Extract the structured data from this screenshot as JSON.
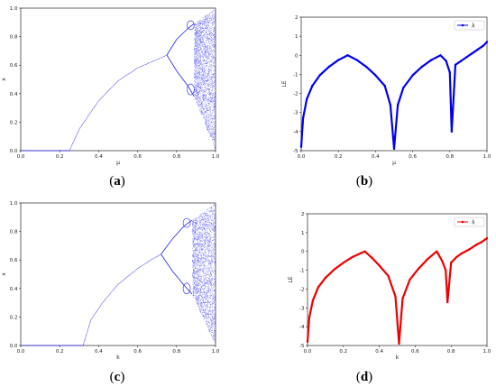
{
  "chart_data": [
    {
      "id": "a",
      "type": "scatter",
      "caption": "a",
      "xlabel": "μ",
      "ylabel": "x",
      "xlim": [
        0.0,
        1.0
      ],
      "ylim": [
        0.0,
        1.0
      ],
      "xticks": [
        "0.0",
        "0.2",
        "0.4",
        "0.6",
        "0.8",
        "1.0"
      ],
      "yticks": [
        "0.0",
        "0.2",
        "0.4",
        "0.6",
        "0.8",
        "1.0"
      ],
      "color": "#2222ee",
      "description_points": {
        "fixed_zero_until": 0.25,
        "period_doubling_at": 0.75,
        "chaos_onset": 0.89,
        "curve": [
          [
            0.25,
            0.0
          ],
          [
            0.3,
            0.15
          ],
          [
            0.4,
            0.35
          ],
          [
            0.5,
            0.49
          ],
          [
            0.6,
            0.58
          ],
          [
            0.7,
            0.64
          ],
          [
            0.75,
            0.67
          ]
        ],
        "branch_upper": [
          [
            0.75,
            0.67
          ],
          [
            0.8,
            0.78
          ],
          [
            0.86,
            0.86
          ],
          [
            0.89,
            0.89
          ]
        ],
        "branch_lower": [
          [
            0.75,
            0.67
          ],
          [
            0.8,
            0.56
          ],
          [
            0.86,
            0.45
          ],
          [
            0.89,
            0.38
          ]
        ]
      }
    },
    {
      "id": "b",
      "type": "line",
      "caption": "b",
      "xlabel": "μ",
      "ylabel": "LE",
      "xlim": [
        0.0,
        1.0
      ],
      "ylim": [
        -5,
        2
      ],
      "xticks": [
        "0.0",
        "0.2",
        "0.4",
        "0.6",
        "0.8",
        "1.0"
      ],
      "yticks": [
        "2",
        "1",
        "0",
        "-1",
        "-2",
        "-3",
        "-4",
        "-5"
      ],
      "legend": "λ",
      "color": "#0000ee",
      "series": [
        {
          "x": [
            0.0,
            0.01,
            0.03,
            0.06,
            0.1,
            0.15,
            0.2,
            0.25,
            0.3,
            0.35,
            0.4,
            0.45,
            0.48,
            0.5,
            0.52,
            0.55,
            0.6,
            0.65,
            0.7,
            0.75,
            0.78,
            0.8,
            0.81,
            0.83,
            0.86,
            0.89,
            0.92,
            0.95,
            0.98,
            1.0
          ],
          "y": [
            -4.8,
            -3.3,
            -2.3,
            -1.6,
            -1.05,
            -0.6,
            -0.25,
            0.0,
            -0.25,
            -0.6,
            -1.05,
            -1.6,
            -2.6,
            -4.9,
            -2.6,
            -1.7,
            -1.05,
            -0.6,
            -0.25,
            0.0,
            -0.3,
            -0.9,
            -4.0,
            -0.5,
            -0.3,
            -0.1,
            0.1,
            0.3,
            0.5,
            0.7
          ]
        }
      ]
    },
    {
      "id": "c",
      "type": "scatter",
      "caption": "c",
      "xlabel": "k",
      "ylabel": "x",
      "xlim": [
        0.0,
        1.0
      ],
      "ylim": [
        0.0,
        1.0
      ],
      "xticks": [
        "0.0",
        "0.2",
        "0.4",
        "0.6",
        "0.8",
        "1.0"
      ],
      "yticks": [
        "0.0",
        "0.2",
        "0.4",
        "0.6",
        "0.8",
        "1.0"
      ],
      "color": "#2222ee",
      "description_points": {
        "fixed_zero_until": 0.32,
        "period_doubling_at": 0.72,
        "chaos_onset": 0.88,
        "curve": [
          [
            0.32,
            0.0
          ],
          [
            0.36,
            0.18
          ],
          [
            0.42,
            0.3
          ],
          [
            0.5,
            0.43
          ],
          [
            0.6,
            0.54
          ],
          [
            0.68,
            0.61
          ],
          [
            0.72,
            0.64
          ]
        ],
        "branch_upper": [
          [
            0.72,
            0.64
          ],
          [
            0.78,
            0.75
          ],
          [
            0.84,
            0.84
          ],
          [
            0.88,
            0.88
          ]
        ],
        "branch_lower": [
          [
            0.72,
            0.64
          ],
          [
            0.78,
            0.52
          ],
          [
            0.84,
            0.42
          ],
          [
            0.88,
            0.36
          ]
        ]
      }
    },
    {
      "id": "d",
      "type": "line",
      "caption": "d",
      "xlabel": "k",
      "ylabel": "LE",
      "xlim": [
        0.0,
        1.0
      ],
      "ylim": [
        -5,
        2
      ],
      "xticks": [
        "0.0",
        "0.2",
        "0.4",
        "0.6",
        "0.8",
        "1.0"
      ],
      "yticks": [
        "2",
        "1",
        "0",
        "-1",
        "-2",
        "-3",
        "-4",
        "-5"
      ],
      "legend": "λ",
      "color": "#ee0000",
      "series": [
        {
          "x": [
            0.0,
            0.01,
            0.03,
            0.06,
            0.1,
            0.15,
            0.2,
            0.25,
            0.3,
            0.32,
            0.36,
            0.4,
            0.45,
            0.49,
            0.51,
            0.53,
            0.57,
            0.62,
            0.67,
            0.72,
            0.75,
            0.77,
            0.78,
            0.8,
            0.83,
            0.86,
            0.9,
            0.94,
            0.97,
            1.0
          ],
          "y": [
            -4.8,
            -3.5,
            -2.6,
            -1.9,
            -1.4,
            -0.95,
            -0.6,
            -0.3,
            -0.08,
            0.0,
            -0.35,
            -0.75,
            -1.3,
            -2.4,
            -4.9,
            -2.5,
            -1.5,
            -0.9,
            -0.4,
            0.0,
            -0.5,
            -1.0,
            -2.7,
            -0.6,
            -0.3,
            -0.1,
            0.1,
            0.35,
            0.5,
            0.7
          ]
        }
      ]
    }
  ]
}
